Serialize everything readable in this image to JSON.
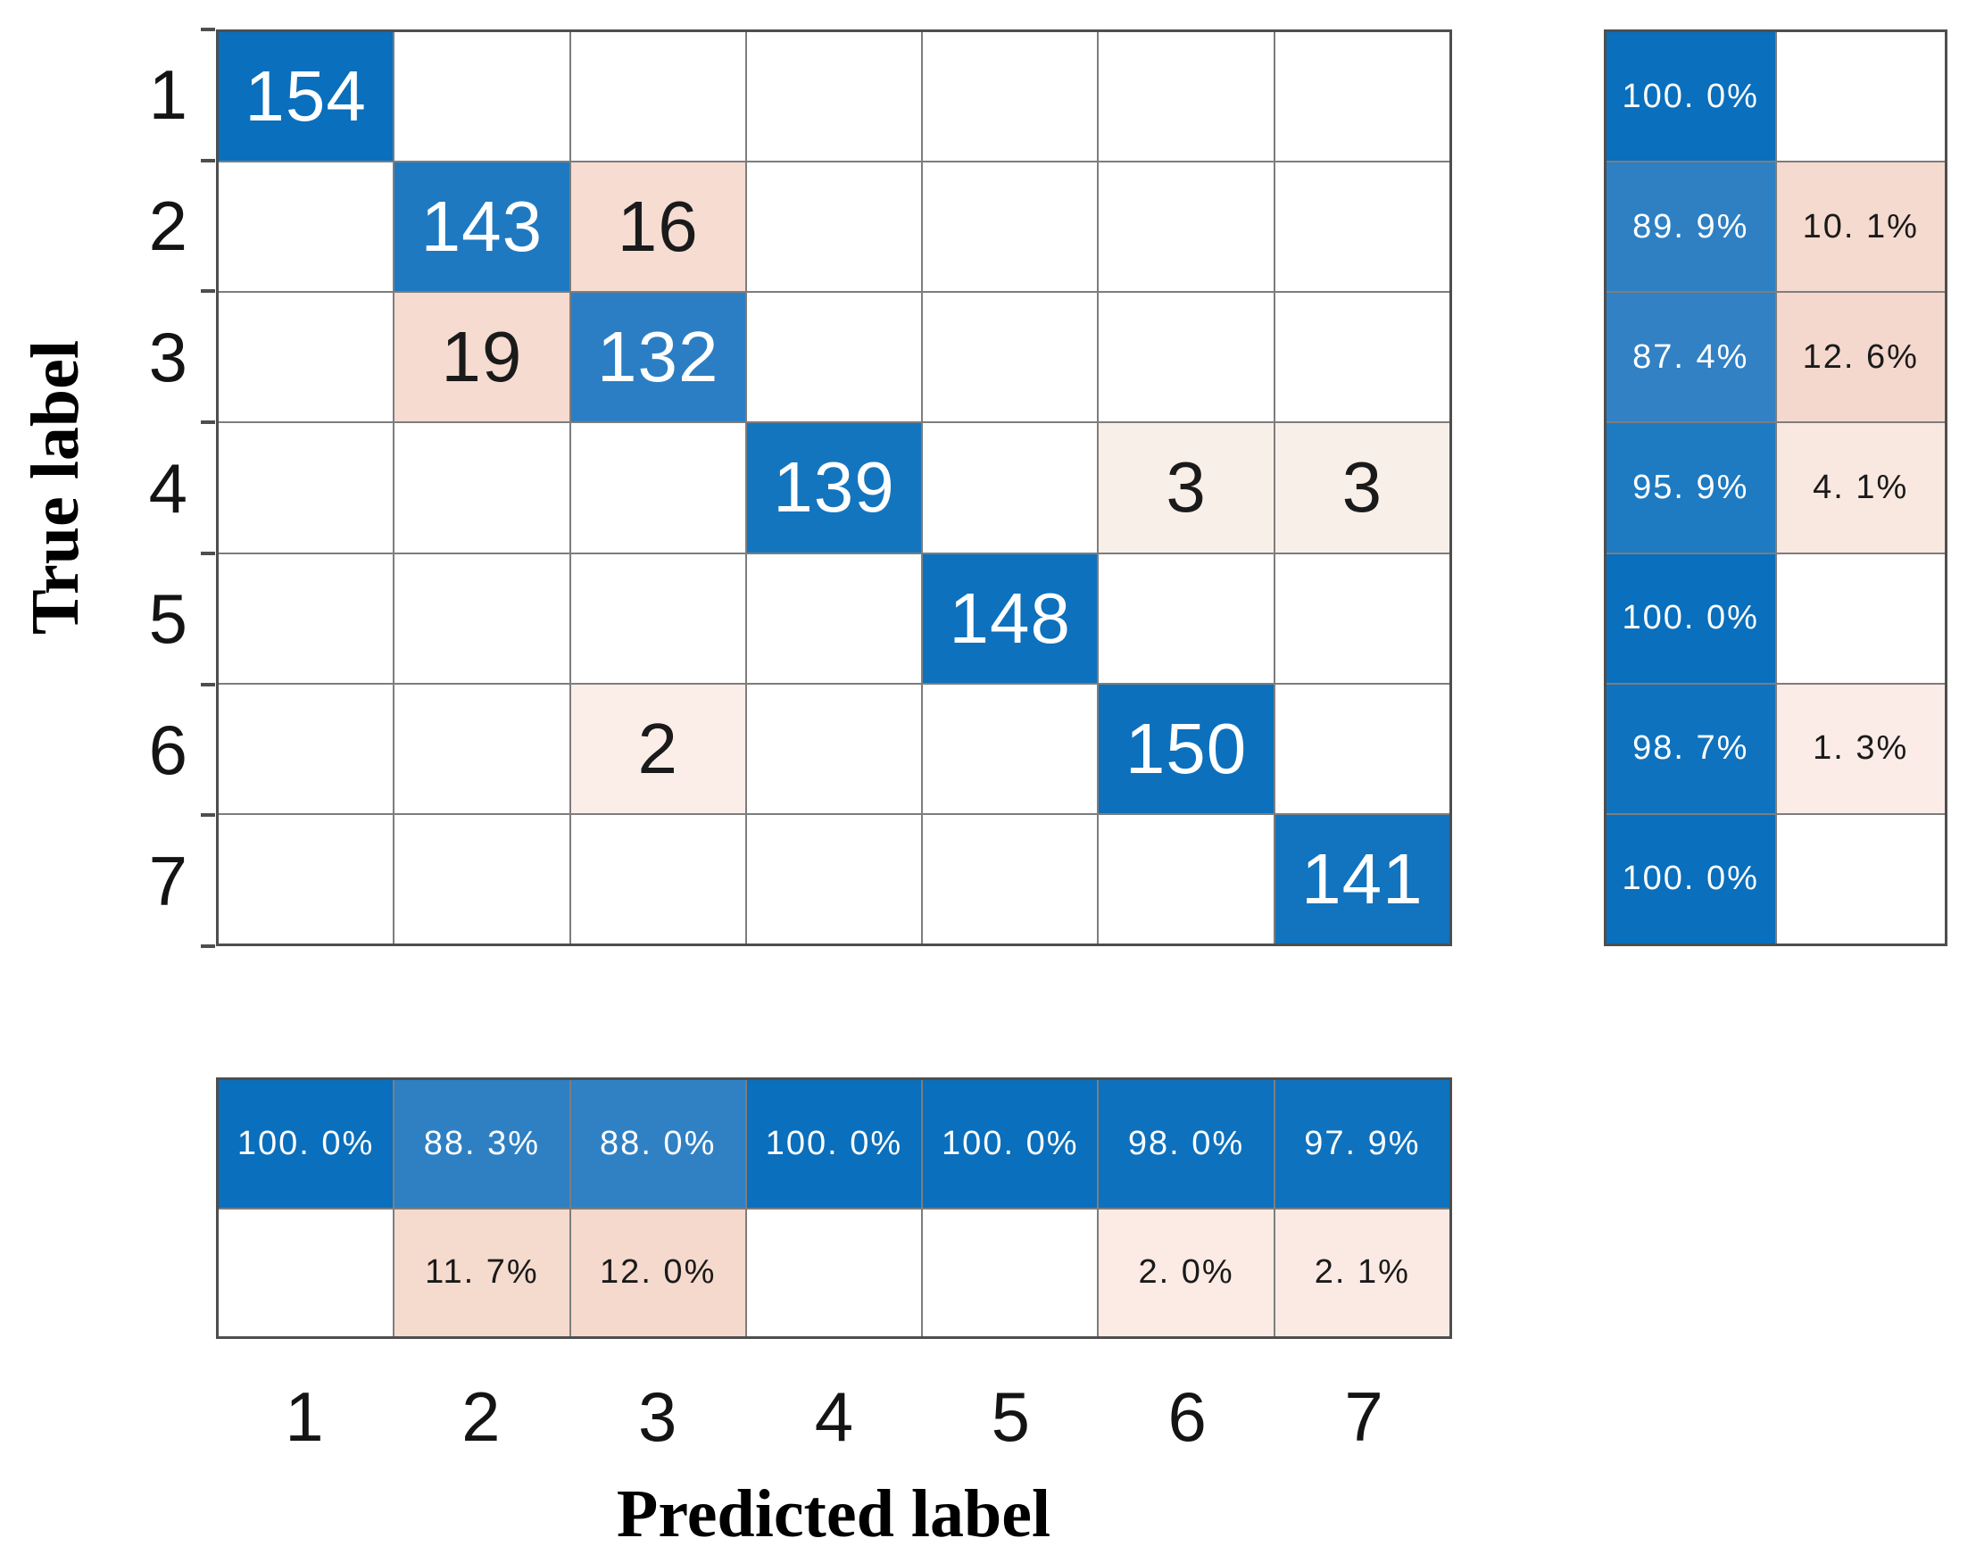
{
  "chart_data": {
    "type": "heatmap",
    "subtype": "confusion-matrix",
    "xlabel": "Predicted label",
    "ylabel": "True label",
    "classes": [
      "1",
      "2",
      "3",
      "4",
      "5",
      "6",
      "7"
    ],
    "matrix": [
      [
        154,
        0,
        0,
        0,
        0,
        0,
        0
      ],
      [
        0,
        143,
        16,
        0,
        0,
        0,
        0
      ],
      [
        0,
        19,
        132,
        0,
        0,
        0,
        0
      ],
      [
        0,
        0,
        0,
        139,
        0,
        3,
        3
      ],
      [
        0,
        0,
        0,
        0,
        148,
        0,
        0
      ],
      [
        0,
        0,
        2,
        0,
        0,
        150,
        0
      ],
      [
        0,
        0,
        0,
        0,
        0,
        0,
        141
      ]
    ],
    "row_summary_pct": [
      [
        100.0,
        null
      ],
      [
        89.9,
        10.1
      ],
      [
        87.4,
        12.6
      ],
      [
        95.9,
        4.1
      ],
      [
        100.0,
        null
      ],
      [
        98.7,
        1.3
      ],
      [
        100.0,
        null
      ]
    ],
    "col_summary_pct": [
      [
        100.0,
        88.3,
        88.0,
        100.0,
        100.0,
        98.0,
        97.9
      ],
      [
        null,
        11.7,
        12.0,
        null,
        null,
        2.0,
        2.1
      ]
    ],
    "legend": "none",
    "grid": true,
    "layout_hint": "row summaries right of matrix, column summaries below matrix, x ticks under column summary"
  },
  "colors": {
    "blue_strong": "#0a6fbc",
    "blue_light": "#2e80c3",
    "pink_strong": "#f6dcd1",
    "pink_light": "#f9efe9",
    "gridline": "#7d7d7d",
    "frame": "#4e4e4e",
    "text_on_blue": "#ffffff",
    "text_on_pink": "#1a1a1a"
  },
  "grids": {
    "main": {
      "cols": 7,
      "cell_name": "matrix-cell",
      "values": [
        [
          "154",
          "",
          "",
          "",
          "",
          "",
          ""
        ],
        [
          "",
          "143",
          "16",
          "",
          "",
          "",
          ""
        ],
        [
          "",
          "19",
          "132",
          "",
          "",
          "",
          ""
        ],
        [
          "",
          "",
          "",
          "139",
          "",
          "3",
          "3"
        ],
        [
          "",
          "",
          "",
          "",
          "148",
          "",
          ""
        ],
        [
          "",
          "",
          "2",
          "",
          "",
          "150",
          ""
        ],
        [
          "",
          "",
          "",
          "",
          "",
          "",
          "141"
        ]
      ],
      "bg": [
        [
          "#0a6fbc",
          "",
          "",
          "",
          "",
          "",
          ""
        ],
        [
          "",
          "#1e79c1",
          "#f6dcd1",
          "",
          "",
          "",
          ""
        ],
        [
          "",
          "#f6dbd0",
          "#2b7ec3",
          "",
          "",
          "",
          ""
        ],
        [
          "",
          "",
          "",
          "#1475bf",
          "",
          "#f9efe9",
          "#f9efe9"
        ],
        [
          "",
          "",
          "",
          "",
          "#0d71bd",
          "",
          ""
        ],
        [
          "",
          "",
          "#fbeee9",
          "",
          "",
          "#0c70bd",
          ""
        ],
        [
          "",
          "",
          "",
          "",
          "",
          "",
          "#1273be"
        ]
      ]
    },
    "row_summary": {
      "cols": 2,
      "cell_name": "row-summary-cell",
      "values": [
        [
          "100. 0%",
          ""
        ],
        [
          "89. 9%",
          "10. 1%"
        ],
        [
          "87. 4%",
          "12. 6%"
        ],
        [
          "95. 9%",
          "4. 1%"
        ],
        [
          "100. 0%",
          ""
        ],
        [
          "98. 7%",
          "1. 3%"
        ],
        [
          "100. 0%",
          ""
        ]
      ],
      "bg": [
        [
          "#0a6fbc",
          ""
        ],
        [
          "#2e80c3",
          "#f5dacf"
        ],
        [
          "#3181c4",
          "#f4d8cd"
        ],
        [
          "#1e7ac1",
          "#f9e8e0"
        ],
        [
          "#0a6fbc",
          ""
        ],
        [
          "#0f72be",
          "#fbece7"
        ],
        [
          "#0a6fbc",
          ""
        ]
      ]
    },
    "col_summary": {
      "cols": 7,
      "cell_name": "col-summary-cell",
      "values": [
        [
          "100. 0%",
          "88. 3%",
          "88. 0%",
          "100. 0%",
          "100. 0%",
          "98. 0%",
          "97. 9%"
        ],
        [
          "",
          "11. 7%",
          "12. 0%",
          "",
          "",
          "2. 0%",
          "2. 1%"
        ]
      ],
      "bg": [
        [
          "#0a6fbc",
          "#2e80c3",
          "#3081c4",
          "#0a6fbc",
          "#0a6fbc",
          "#0d71bd",
          "#0e72be"
        ],
        [
          "",
          "#f5dace",
          "#f5d9cd",
          "",
          "",
          "#fbebe4",
          "#fbeae4"
        ]
      ]
    }
  },
  "axes": {
    "x_ticks": [
      "1",
      "2",
      "3",
      "4",
      "5",
      "6",
      "7"
    ],
    "y_ticks": [
      "1",
      "2",
      "3",
      "4",
      "5",
      "6",
      "7"
    ],
    "x_title": "Predicted label",
    "y_title": "True label"
  }
}
